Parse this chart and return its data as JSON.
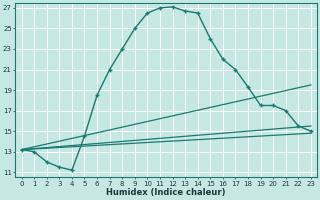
{
  "xlabel": "Humidex (Indice chaleur)",
  "bg_color": "#c5e8e3",
  "grid_color": "#ffffff",
  "line_color": "#1a7a6e",
  "xlim": [
    -0.5,
    23.5
  ],
  "ylim": [
    10.5,
    27.5
  ],
  "xticks": [
    0,
    1,
    2,
    3,
    4,
    5,
    6,
    7,
    8,
    9,
    10,
    11,
    12,
    13,
    14,
    15,
    16,
    17,
    18,
    19,
    20,
    21,
    22,
    23
  ],
  "yticks": [
    11,
    13,
    15,
    17,
    19,
    21,
    23,
    25,
    27
  ],
  "main_x": [
    0,
    1,
    2,
    3,
    4,
    5,
    6,
    7,
    8,
    9,
    10,
    11,
    12,
    13,
    14,
    15,
    16,
    17,
    18,
    19,
    20,
    21,
    22,
    23
  ],
  "main_y": [
    13.2,
    13.0,
    12.0,
    11.5,
    11.2,
    14.5,
    18.5,
    21.0,
    23.0,
    25.0,
    26.5,
    27.0,
    27.1,
    26.7,
    26.5,
    24.0,
    22.0,
    21.0,
    19.3,
    17.5,
    17.5,
    17.0,
    15.5,
    15.0
  ],
  "flat_lines": [
    {
      "x0": 0,
      "y0": 13.2,
      "x1": 23,
      "y1": 14.8
    },
    {
      "x0": 0,
      "y0": 13.2,
      "x1": 23,
      "y1": 15.5
    },
    {
      "x0": 0,
      "y0": 13.2,
      "x1": 23,
      "y1": 19.5
    }
  ]
}
